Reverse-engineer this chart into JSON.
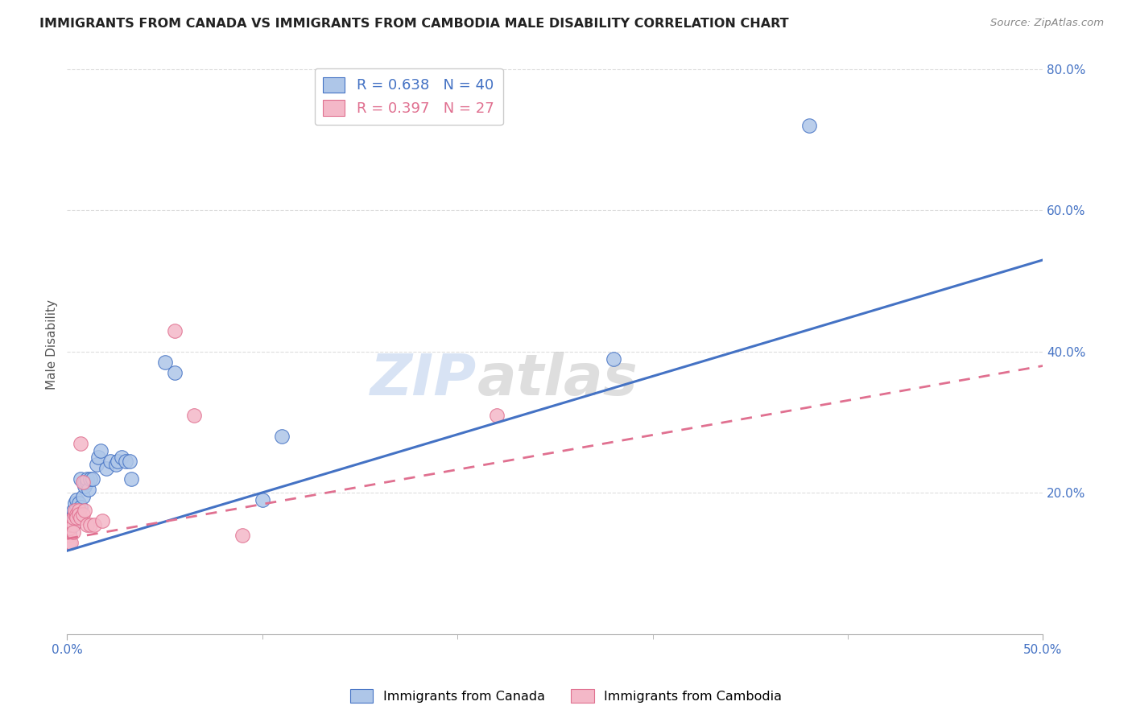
{
  "title": "IMMIGRANTS FROM CANADA VS IMMIGRANTS FROM CAMBODIA MALE DISABILITY CORRELATION CHART",
  "source": "Source: ZipAtlas.com",
  "ylabel": "Male Disability",
  "legend1_text": "R = 0.638   N = 40",
  "legend2_text": "R = 0.397   N = 27",
  "canada_color": "#aec6e8",
  "cambodia_color": "#f4b8c8",
  "trendline_canada_color": "#4472c4",
  "trendline_cambodia_color": "#e07090",
  "canada_scatter": [
    [
      0.001,
      0.145
    ],
    [
      0.001,
      0.155
    ],
    [
      0.002,
      0.16
    ],
    [
      0.002,
      0.165
    ],
    [
      0.003,
      0.17
    ],
    [
      0.003,
      0.155
    ],
    [
      0.003,
      0.175
    ],
    [
      0.004,
      0.185
    ],
    [
      0.004,
      0.165
    ],
    [
      0.005,
      0.19
    ],
    [
      0.005,
      0.175
    ],
    [
      0.006,
      0.185
    ],
    [
      0.006,
      0.17
    ],
    [
      0.007,
      0.18
    ],
    [
      0.007,
      0.22
    ],
    [
      0.008,
      0.195
    ],
    [
      0.009,
      0.21
    ],
    [
      0.009,
      0.215
    ],
    [
      0.01,
      0.215
    ],
    [
      0.01,
      0.22
    ],
    [
      0.011,
      0.205
    ],
    [
      0.012,
      0.22
    ],
    [
      0.013,
      0.22
    ],
    [
      0.015,
      0.24
    ],
    [
      0.016,
      0.25
    ],
    [
      0.017,
      0.26
    ],
    [
      0.02,
      0.235
    ],
    [
      0.022,
      0.245
    ],
    [
      0.025,
      0.24
    ],
    [
      0.026,
      0.245
    ],
    [
      0.028,
      0.25
    ],
    [
      0.03,
      0.245
    ],
    [
      0.032,
      0.245
    ],
    [
      0.033,
      0.22
    ],
    [
      0.05,
      0.385
    ],
    [
      0.055,
      0.37
    ],
    [
      0.1,
      0.19
    ],
    [
      0.11,
      0.28
    ],
    [
      0.28,
      0.39
    ],
    [
      0.38,
      0.72
    ]
  ],
  "cambodia_scatter": [
    [
      0.001,
      0.14
    ],
    [
      0.001,
      0.13
    ],
    [
      0.001,
      0.15
    ],
    [
      0.002,
      0.155
    ],
    [
      0.002,
      0.13
    ],
    [
      0.003,
      0.155
    ],
    [
      0.003,
      0.145
    ],
    [
      0.003,
      0.165
    ],
    [
      0.004,
      0.17
    ],
    [
      0.004,
      0.175
    ],
    [
      0.005,
      0.17
    ],
    [
      0.005,
      0.165
    ],
    [
      0.006,
      0.175
    ],
    [
      0.006,
      0.17
    ],
    [
      0.007,
      0.27
    ],
    [
      0.007,
      0.165
    ],
    [
      0.008,
      0.215
    ],
    [
      0.008,
      0.17
    ],
    [
      0.009,
      0.175
    ],
    [
      0.01,
      0.155
    ],
    [
      0.012,
      0.155
    ],
    [
      0.014,
      0.155
    ],
    [
      0.018,
      0.16
    ],
    [
      0.055,
      0.43
    ],
    [
      0.065,
      0.31
    ],
    [
      0.09,
      0.14
    ],
    [
      0.22,
      0.31
    ]
  ],
  "xlim": [
    0.0,
    0.5
  ],
  "ylim": [
    0.0,
    0.82
  ],
  "canada_trendline": [
    0.118,
    0.53
  ],
  "cambodia_trendline": [
    0.135,
    0.38
  ],
  "watermark": "ZIPatlas",
  "background_color": "#ffffff",
  "grid_color": "#dddddd"
}
